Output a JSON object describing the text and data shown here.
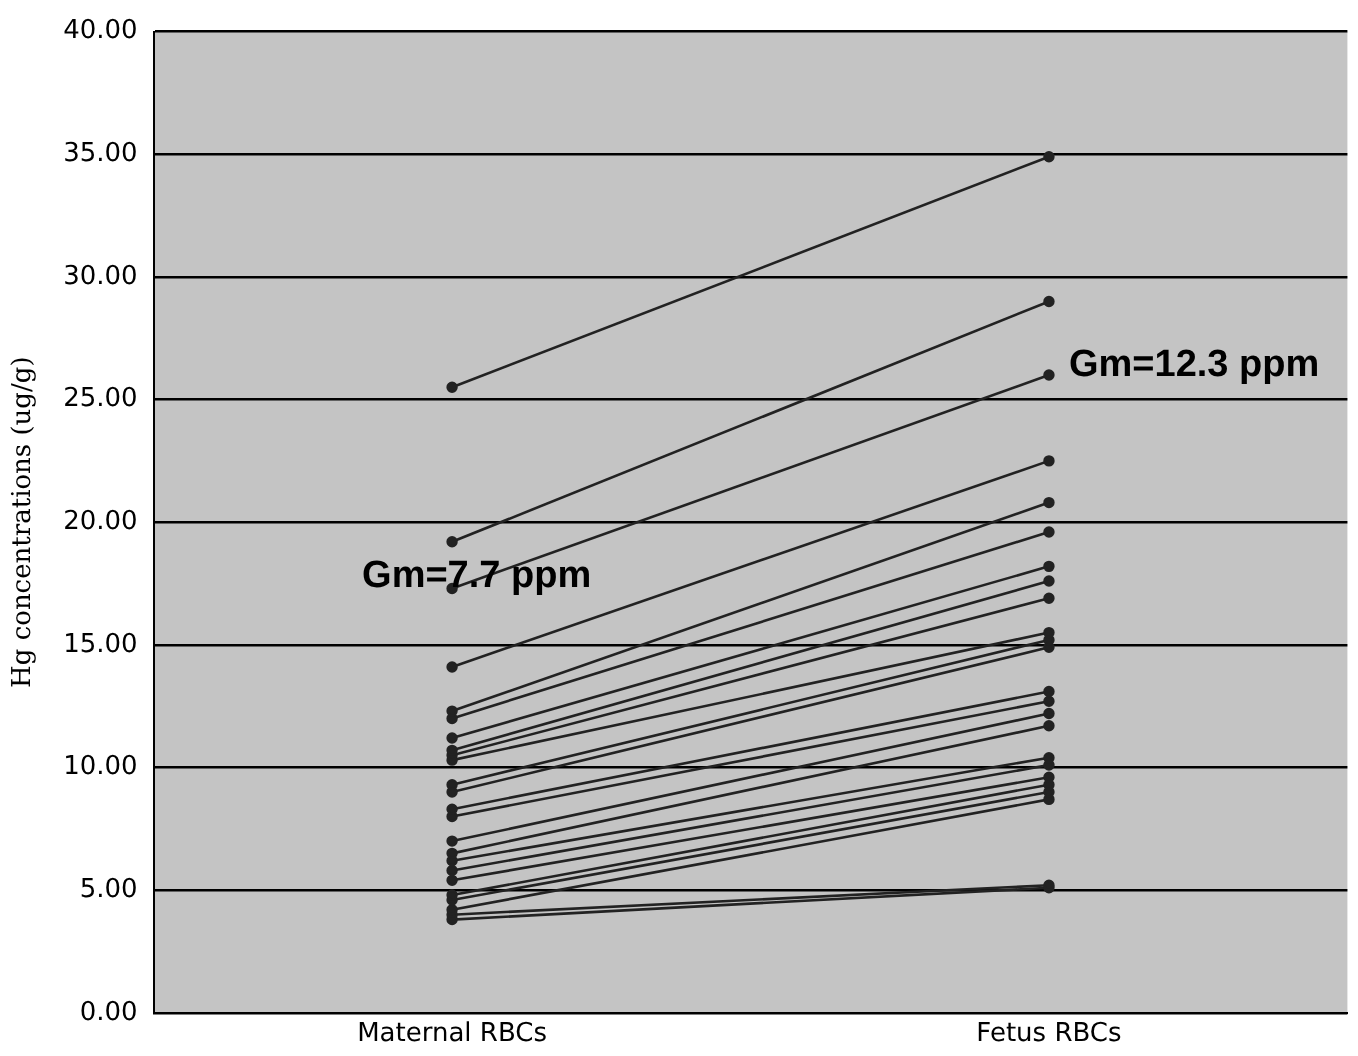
{
  "chart_data": {
    "type": "line",
    "ylabel": "Hg concentrations (ug/g)",
    "categories": [
      "Maternal RBCs",
      "Fetus RBCs"
    ],
    "series": [
      {
        "color": "#222222",
        "values": [
          25.5,
          34.9
        ]
      },
      {
        "color": "#222222",
        "values": [
          19.2,
          29.0
        ]
      },
      {
        "color": "#222222",
        "values": [
          17.3,
          26.0
        ]
      },
      {
        "color": "#222222",
        "values": [
          14.1,
          22.5
        ]
      },
      {
        "color": "#222222",
        "values": [
          12.3,
          20.8
        ]
      },
      {
        "color": "#222222",
        "values": [
          12.0,
          19.6
        ]
      },
      {
        "color": "#222222",
        "values": [
          11.2,
          18.2
        ]
      },
      {
        "color": "#222222",
        "values": [
          10.7,
          17.6
        ]
      },
      {
        "color": "#222222",
        "values": [
          10.5,
          16.9
        ]
      },
      {
        "color": "#222222",
        "values": [
          10.3,
          15.5
        ]
      },
      {
        "color": "#222222",
        "values": [
          9.3,
          15.2
        ]
      },
      {
        "color": "#222222",
        "values": [
          9.0,
          14.9
        ]
      },
      {
        "color": "#222222",
        "values": [
          8.3,
          13.1
        ]
      },
      {
        "color": "#222222",
        "values": [
          8.0,
          12.7
        ]
      },
      {
        "color": "#222222",
        "values": [
          7.0,
          12.2
        ]
      },
      {
        "color": "#222222",
        "values": [
          6.5,
          11.7
        ]
      },
      {
        "color": "#222222",
        "values": [
          6.2,
          10.4
        ]
      },
      {
        "color": "#222222",
        "values": [
          5.8,
          10.1
        ]
      },
      {
        "color": "#222222",
        "values": [
          5.4,
          9.6
        ]
      },
      {
        "color": "#222222",
        "values": [
          4.8,
          9.3
        ]
      },
      {
        "color": "#222222",
        "values": [
          4.6,
          9.0
        ]
      },
      {
        "color": "#222222",
        "values": [
          4.2,
          8.7
        ]
      },
      {
        "color": "#222222",
        "values": [
          4.0,
          5.2
        ]
      },
      {
        "color": "#222222",
        "values": [
          3.8,
          5.1
        ]
      }
    ],
    "ylim": [
      0,
      40
    ],
    "yticks": [
      {
        "value": 0,
        "label": "0.00"
      },
      {
        "value": 5,
        "label": "5.00"
      },
      {
        "value": 10,
        "label": "10.00"
      },
      {
        "value": 15,
        "label": "15.00"
      },
      {
        "value": 20,
        "label": "20.00"
      },
      {
        "value": 25,
        "label": "25.00"
      },
      {
        "value": 30,
        "label": "30.00"
      },
      {
        "value": 35,
        "label": "35.00"
      },
      {
        "value": 40,
        "label": "40.00"
      }
    ],
    "grid": "y",
    "legend": false,
    "marker": "circle",
    "line_style": "solid",
    "annotations": [
      "Gm=7.7 ppm",
      "Gm=12.3 ppm"
    ]
  }
}
